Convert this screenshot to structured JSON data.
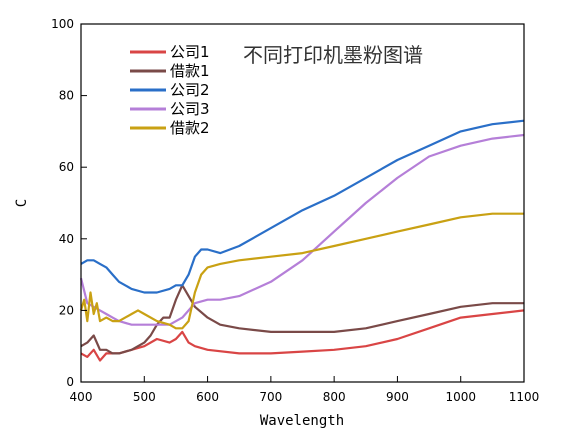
{
  "chart_data": {
    "type": "line",
    "title": "不同打印机墨粉图谱",
    "xlabel": "Wavelength",
    "ylabel": "C",
    "xlim": [
      400,
      1100
    ],
    "ylim": [
      0,
      100
    ],
    "xticks": [
      400,
      500,
      600,
      700,
      800,
      900,
      1000,
      1100
    ],
    "yticks": [
      0,
      20,
      40,
      60,
      80,
      100
    ],
    "grid": false,
    "legend_position": "top-left",
    "series": [
      {
        "name": "公司1",
        "color": "#d94545",
        "x": [
          400,
          410,
          420,
          430,
          440,
          450,
          460,
          480,
          500,
          520,
          540,
          550,
          560,
          570,
          580,
          600,
          650,
          700,
          750,
          800,
          850,
          900,
          950,
          1000,
          1050,
          1100
        ],
        "y": [
          8,
          7,
          9,
          6,
          8,
          8,
          8,
          9,
          10,
          12,
          11,
          12,
          14,
          11,
          10,
          9,
          8,
          8,
          8.5,
          9,
          10,
          12,
          15,
          18,
          19,
          20
        ]
      },
      {
        "name": "借款1",
        "color": "#7a4a48",
        "x": [
          400,
          410,
          420,
          430,
          440,
          450,
          460,
          480,
          500,
          510,
          520,
          530,
          540,
          550,
          560,
          570,
          580,
          600,
          620,
          650,
          700,
          750,
          800,
          850,
          900,
          950,
          1000,
          1050,
          1100
        ],
        "y": [
          10,
          11,
          13,
          9,
          9,
          8,
          8,
          9,
          11,
          13,
          16,
          18,
          18,
          23,
          27,
          24,
          21,
          18,
          16,
          15,
          14,
          14,
          14,
          15,
          17,
          19,
          21,
          22,
          22
        ]
      },
      {
        "name": "公司2",
        "color": "#2a6fc8",
        "x": [
          400,
          410,
          420,
          430,
          440,
          450,
          460,
          480,
          500,
          520,
          540,
          550,
          560,
          570,
          580,
          590,
          600,
          620,
          650,
          700,
          750,
          800,
          850,
          900,
          950,
          1000,
          1050,
          1100
        ],
        "y": [
          33,
          34,
          34,
          33,
          32,
          30,
          28,
          26,
          25,
          25,
          26,
          27,
          27,
          30,
          35,
          37,
          37,
          36,
          38,
          43,
          48,
          52,
          57,
          62,
          66,
          70,
          72,
          73
        ]
      },
      {
        "name": "公司3",
        "color": "#b57fd8",
        "x": [
          400,
          410,
          420,
          430,
          440,
          450,
          460,
          480,
          500,
          520,
          540,
          560,
          580,
          600,
          620,
          650,
          700,
          750,
          800,
          850,
          900,
          950,
          1000,
          1050,
          1100
        ],
        "y": [
          29,
          22,
          21,
          20,
          19,
          18,
          17,
          16,
          16,
          16,
          16,
          18,
          22,
          23,
          23,
          24,
          28,
          34,
          42,
          50,
          57,
          63,
          66,
          68,
          69
        ]
      },
      {
        "name": "借款2",
        "color": "#c9a113",
        "x": [
          400,
          405,
          410,
          415,
          420,
          425,
          430,
          440,
          450,
          460,
          480,
          490,
          500,
          520,
          540,
          550,
          560,
          570,
          580,
          590,
          600,
          620,
          650,
          700,
          750,
          800,
          850,
          900,
          950,
          1000,
          1050,
          1100
        ],
        "y": [
          20,
          23,
          17,
          25,
          19,
          22,
          17,
          18,
          17,
          17,
          19,
          20,
          19,
          17,
          16,
          15,
          15,
          17,
          25,
          30,
          32,
          33,
          34,
          35,
          36,
          38,
          40,
          42,
          44,
          46,
          47,
          47
        ]
      }
    ]
  }
}
